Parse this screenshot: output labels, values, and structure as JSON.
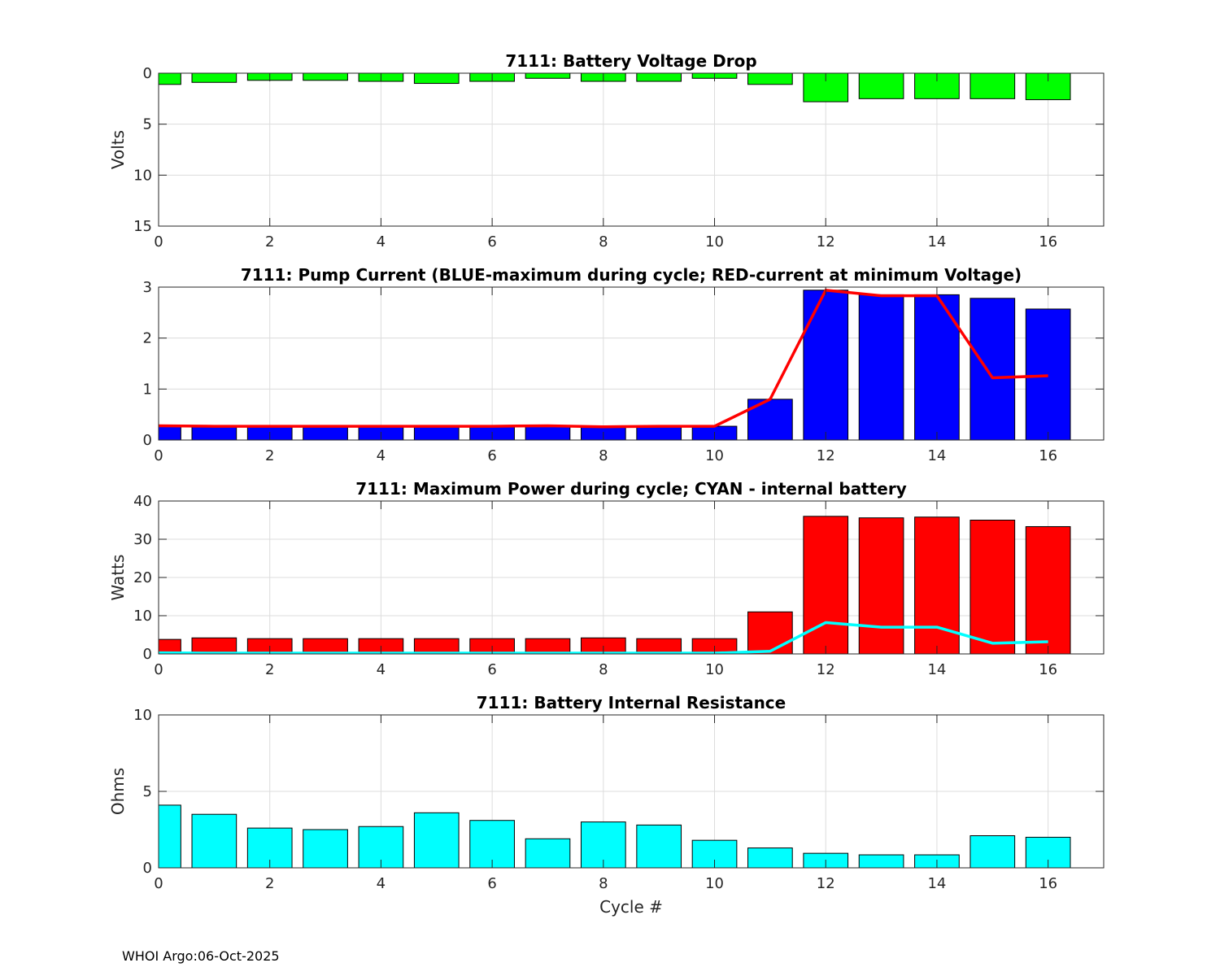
{
  "footer": "WHOI Argo:06-Oct-2025",
  "chart_data": [
    {
      "type": "bar",
      "title": "7111: Battery Voltage Drop",
      "ylabel": "Volts",
      "xlabel": "",
      "xlim": [
        0,
        17
      ],
      "ylim": [
        0,
        15
      ],
      "y_reversed": true,
      "yticks": [
        0,
        5,
        10,
        15
      ],
      "xticks": [
        0,
        2,
        4,
        6,
        8,
        10,
        12,
        14,
        16
      ],
      "grid": true,
      "x": [
        0,
        1,
        2,
        3,
        4,
        5,
        6,
        7,
        8,
        9,
        10,
        11,
        12,
        13,
        14,
        15,
        16
      ],
      "series": [
        {
          "values": [
            1.1,
            0.9,
            0.7,
            0.7,
            0.8,
            1.0,
            0.8,
            0.5,
            0.8,
            0.8,
            0.5,
            1.1,
            2.8,
            2.5,
            2.5,
            2.5,
            2.6
          ],
          "color": "#00ff00",
          "style": "bar"
        }
      ]
    },
    {
      "type": "bar",
      "title": "7111: Pump Current (BLUE-maximum during cycle; RED-current at minimum Voltage)",
      "ylabel": "",
      "xlabel": "",
      "xlim": [
        0,
        17
      ],
      "ylim": [
        0,
        3
      ],
      "yticks": [
        0,
        1,
        2,
        3
      ],
      "xticks": [
        0,
        2,
        4,
        6,
        8,
        10,
        12,
        14,
        16
      ],
      "grid": true,
      "x": [
        0,
        1,
        2,
        3,
        4,
        5,
        6,
        7,
        8,
        9,
        10,
        11,
        12,
        13,
        14,
        15,
        16
      ],
      "series": [
        {
          "values": [
            0.28,
            0.27,
            0.27,
            0.27,
            0.27,
            0.27,
            0.27,
            0.28,
            0.27,
            0.27,
            0.27,
            0.8,
            2.94,
            2.85,
            2.85,
            2.78,
            2.57
          ],
          "color": "#0000ff",
          "style": "bar"
        },
        {
          "values": [
            0.28,
            0.27,
            0.27,
            0.27,
            0.27,
            0.27,
            0.27,
            0.28,
            0.26,
            0.27,
            0.27,
            0.8,
            2.94,
            2.83,
            2.83,
            1.22,
            1.26
          ],
          "color": "#ff0000",
          "style": "line"
        }
      ]
    },
    {
      "type": "bar",
      "title": "7111: Maximum Power during cycle; CYAN - internal battery",
      "ylabel": "Watts",
      "xlabel": "",
      "xlim": [
        0,
        17
      ],
      "ylim": [
        0,
        40
      ],
      "yticks": [
        0,
        10,
        20,
        30,
        40
      ],
      "xticks": [
        0,
        2,
        4,
        6,
        8,
        10,
        12,
        14,
        16
      ],
      "grid": true,
      "x": [
        0,
        1,
        2,
        3,
        4,
        5,
        6,
        7,
        8,
        9,
        10,
        11,
        12,
        13,
        14,
        15,
        16
      ],
      "series": [
        {
          "values": [
            3.8,
            4.2,
            4.0,
            4.0,
            4.0,
            4.0,
            4.0,
            4.0,
            4.2,
            4.0,
            4.0,
            11.0,
            36.0,
            35.6,
            35.8,
            35.0,
            33.3
          ],
          "color": "#ff0000",
          "style": "bar"
        },
        {
          "values": [
            0.3,
            0.2,
            0.2,
            0.2,
            0.2,
            0.2,
            0.2,
            0.2,
            0.2,
            0.2,
            0.2,
            0.7,
            8.2,
            7.0,
            7.0,
            2.8,
            3.2
          ],
          "color": "#00ffff",
          "style": "line"
        }
      ]
    },
    {
      "type": "bar",
      "title": "7111: Battery Internal Resistance",
      "ylabel": "Ohms",
      "xlabel": "Cycle #",
      "xlim": [
        0,
        17
      ],
      "ylim": [
        0,
        10
      ],
      "yticks": [
        0,
        5,
        10
      ],
      "xticks": [
        0,
        2,
        4,
        6,
        8,
        10,
        12,
        14,
        16
      ],
      "grid": true,
      "x": [
        0,
        1,
        2,
        3,
        4,
        5,
        6,
        7,
        8,
        9,
        10,
        11,
        12,
        13,
        14,
        15,
        16
      ],
      "series": [
        {
          "values": [
            4.1,
            3.5,
            2.6,
            2.5,
            2.7,
            3.6,
            3.1,
            1.9,
            3.0,
            2.8,
            1.8,
            1.3,
            0.95,
            0.85,
            0.85,
            2.1,
            2.0
          ],
          "color": "#00ffff",
          "style": "bar"
        }
      ]
    }
  ]
}
